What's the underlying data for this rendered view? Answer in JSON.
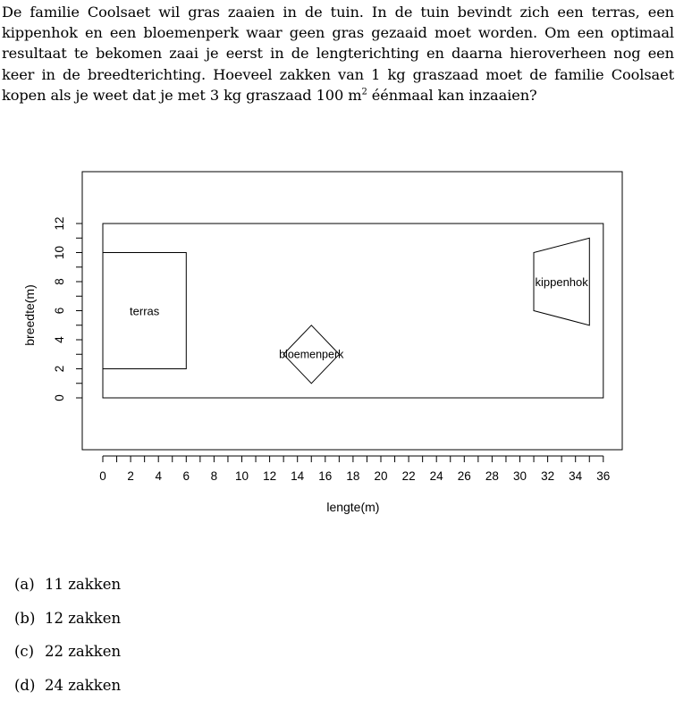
{
  "question": {
    "text_before_sup": "De familie Coolsaet wil gras zaaien in de tuin. In de tuin bevindt zich een terras, een kippenhok en een bloemenperk waar geen gras gezaaid moet worden. Om een optimaal resultaat te bekomen zaai je eerst in de lengterichting en daarna hieroverheen nog een keer in de breedterichting. Hoeveel zakken van 1 kg graszaad moet de familie Coolsaet kopen als je weet dat je met 3 kg graszaad 100 m",
    "sup": "2",
    "text_after_sup": " éénmaal kan inzaaien?"
  },
  "chart_data": {
    "type": "diagram",
    "xlabel": "lengte(m)",
    "ylabel": "breedte(m)",
    "xlim": [
      0,
      36
    ],
    "ylim": [
      0,
      12
    ],
    "x_ticks": [
      0,
      2,
      4,
      6,
      8,
      10,
      12,
      14,
      16,
      18,
      20,
      22,
      24,
      26,
      28,
      30,
      32,
      34,
      36
    ],
    "y_ticks": [
      0,
      2,
      4,
      6,
      8,
      10,
      12
    ],
    "tuin": {
      "points": [
        [
          0,
          0
        ],
        [
          36,
          0
        ],
        [
          36,
          12
        ],
        [
          0,
          12
        ]
      ]
    },
    "terras": {
      "label": "terras",
      "points": [
        [
          0,
          2
        ],
        [
          6,
          2
        ],
        [
          6,
          10
        ],
        [
          0,
          10
        ]
      ]
    },
    "bloemenperk": {
      "label": "bloemenperk",
      "points": [
        [
          15,
          1
        ],
        [
          17,
          3
        ],
        [
          15,
          5
        ],
        [
          13,
          3
        ]
      ]
    },
    "kippenhok": {
      "label": "kippenhok",
      "points": [
        [
          31,
          6
        ],
        [
          35,
          5
        ],
        [
          35,
          11
        ],
        [
          31,
          10
        ]
      ]
    }
  },
  "options": [
    {
      "label": "(a)",
      "text": "11 zakken"
    },
    {
      "label": "(b)",
      "text": "12 zakken"
    },
    {
      "label": "(c)",
      "text": "22 zakken"
    },
    {
      "label": "(d)",
      "text": "24 zakken"
    }
  ]
}
